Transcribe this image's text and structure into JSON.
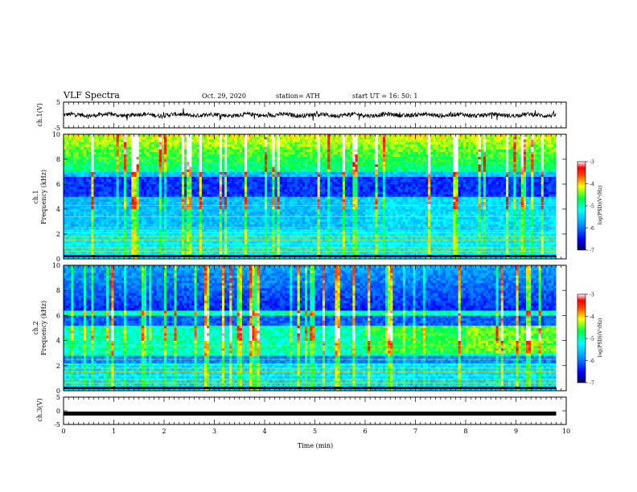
{
  "header": {
    "title": "VLF Spectra",
    "date": "Oct. 29, 2020",
    "station": "station= ATH",
    "start": "start  UT =   16: 50: 1"
  },
  "chart_data": [
    {
      "type": "line",
      "panel": "ch1-waveform",
      "ylabel": "ch.1(V)",
      "ylim": [
        -5,
        5
      ],
      "yticks": [
        "5",
        "-5"
      ],
      "xlim": [
        0,
        10
      ],
      "description_values": "noisy waveform centred near 0 V, amplitude about ±1 V with spikes up to ±2 V"
    },
    {
      "type": "heatmap",
      "panel": "ch1-spectrogram",
      "ylabel": "ch.1",
      "ylabel2": "Frequency (kHz)",
      "ylim": [
        0,
        10
      ],
      "yticks": [
        "0",
        "2",
        "4",
        "6",
        "8",
        "10"
      ],
      "xlim": [
        0,
        9.8
      ],
      "colorbar": {
        "label": "log(PSD)(V²/Hz)",
        "range": [
          -7,
          -3
        ],
        "ticks": [
          "-3",
          "-4",
          "-5",
          "-6",
          "-7"
        ]
      }
    },
    {
      "type": "heatmap",
      "panel": "ch2-spectrogram",
      "ylabel": "ch.2",
      "ylabel2": "Frequency (kHz)",
      "ylim": [
        0,
        10
      ],
      "yticks": [
        "0",
        "2",
        "4",
        "6",
        "8",
        "10"
      ],
      "xlim": [
        0,
        9.8
      ],
      "colorbar": {
        "label": "log(PSD)(V²/Hz)",
        "range": [
          -7,
          -3
        ],
        "ticks": [
          "-3",
          "-4",
          "-5",
          "-6",
          "-7"
        ]
      }
    },
    {
      "type": "line",
      "panel": "ch3-waveform",
      "ylabel": "ch.3(V)",
      "ylim": [
        -5,
        5
      ],
      "yticks": [
        "5",
        "0",
        "-5"
      ],
      "xlim": [
        0,
        10
      ],
      "description_values": "flat thick line at about -1 V"
    }
  ],
  "xaxis": {
    "label": "Time  (min)",
    "ticks": [
      "0",
      "1",
      "2",
      "3",
      "4",
      "5",
      "6",
      "7",
      "8",
      "9",
      "10"
    ]
  },
  "colors": {
    "axis": "#000000",
    "spectrum_low": "#0000a0",
    "spectrum_high": "#ff0000"
  }
}
